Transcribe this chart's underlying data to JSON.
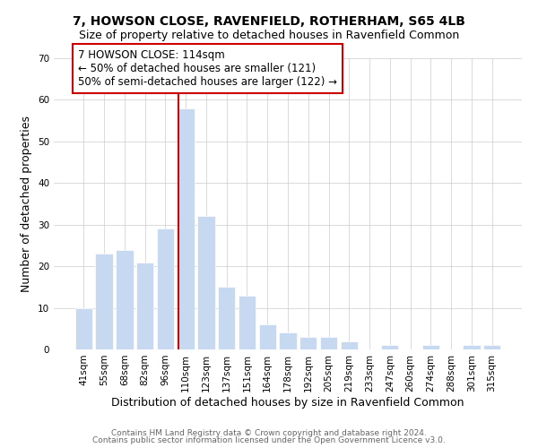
{
  "title": "7, HOWSON CLOSE, RAVENFIELD, ROTHERHAM, S65 4LB",
  "subtitle": "Size of property relative to detached houses in Ravenfield Common",
  "xlabel": "Distribution of detached houses by size in Ravenfield Common",
  "ylabel": "Number of detached properties",
  "bar_labels": [
    "41sqm",
    "55sqm",
    "68sqm",
    "82sqm",
    "96sqm",
    "110sqm",
    "123sqm",
    "137sqm",
    "151sqm",
    "164sqm",
    "178sqm",
    "192sqm",
    "205sqm",
    "219sqm",
    "233sqm",
    "247sqm",
    "260sqm",
    "274sqm",
    "288sqm",
    "301sqm",
    "315sqm"
  ],
  "bar_values": [
    10,
    23,
    24,
    21,
    29,
    58,
    32,
    15,
    13,
    6,
    4,
    3,
    3,
    2,
    0,
    1,
    0,
    1,
    0,
    1,
    1
  ],
  "bar_color": "#c6d9f0",
  "vline_color": "#cc0000",
  "vline_bar_index": 5,
  "annotation_title": "7 HOWSON CLOSE: 114sqm",
  "annotation_line1": "← 50% of detached houses are smaller (121)",
  "annotation_line2": "50% of semi-detached houses are larger (122) →",
  "annotation_box_color": "#ffffff",
  "annotation_box_edgecolor": "#cc0000",
  "ylim": [
    0,
    70
  ],
  "yticks": [
    0,
    10,
    20,
    30,
    40,
    50,
    60,
    70
  ],
  "footer1": "Contains HM Land Registry data © Crown copyright and database right 2024.",
  "footer2": "Contains public sector information licensed under the Open Government Licence v3.0.",
  "title_fontsize": 10,
  "subtitle_fontsize": 9,
  "axis_label_fontsize": 9,
  "tick_fontsize": 7.5,
  "annotation_fontsize": 8.5,
  "footer_fontsize": 6.5
}
